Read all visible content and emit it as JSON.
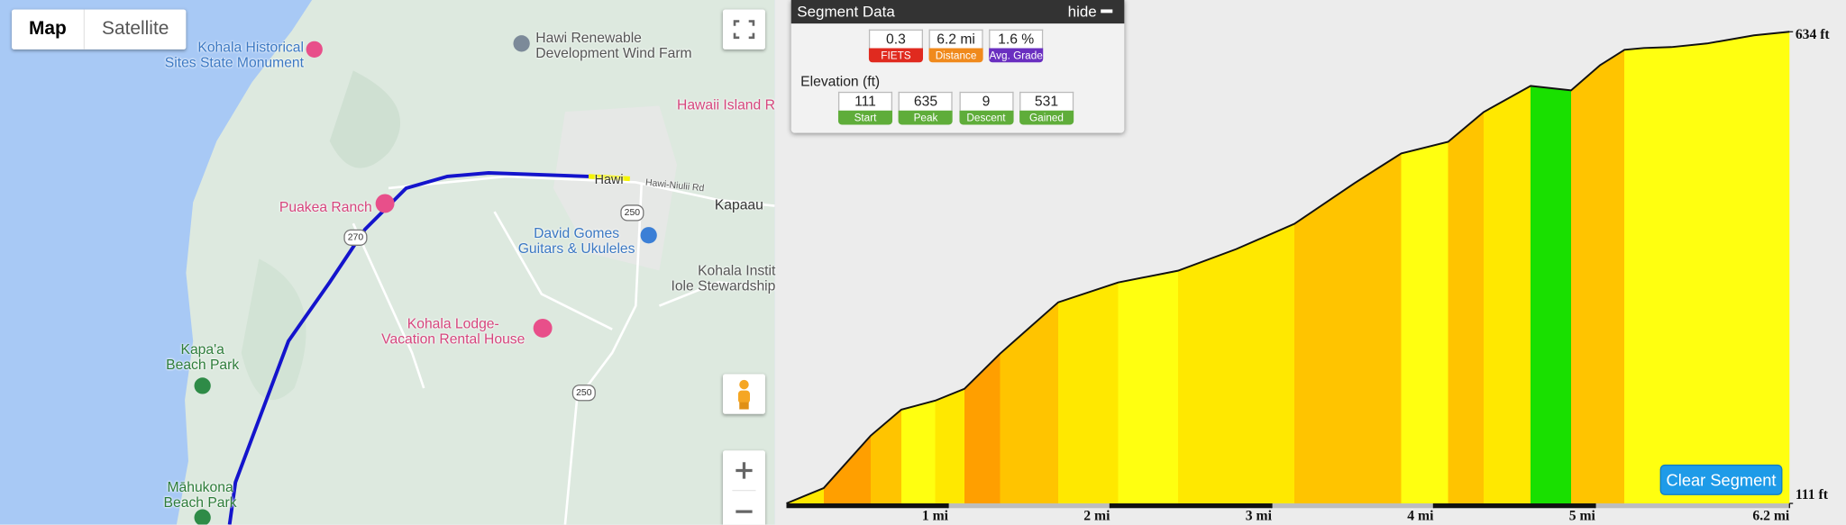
{
  "map": {
    "controls": {
      "map": "Map",
      "satellite": "Satellite"
    },
    "labels": [
      {
        "lines": [
          "Kohala Historical",
          "Sites State Monument"
        ]
      },
      {
        "lines": [
          "Hawi Renewable",
          "Development Wind Farm"
        ]
      },
      {
        "lines": [
          "Hawaii Island R"
        ]
      },
      {
        "lines": [
          "Puakea Ranch"
        ]
      },
      {
        "lines": [
          "Hawi"
        ]
      },
      {
        "lines": [
          "Hawi-Niulii Rd"
        ]
      },
      {
        "lines": [
          "Kapaau"
        ]
      },
      {
        "lines": [
          "David Gomes",
          "Guitars & Ukuleles"
        ]
      },
      {
        "lines": [
          "Kohala Instit",
          "Iole Stewardship"
        ]
      },
      {
        "lines": [
          "Kohala Lodge-",
          "Vacation Rental House"
        ]
      },
      {
        "lines": [
          "Kapa'a",
          "Beach Park"
        ]
      },
      {
        "lines": [
          "Māhukona",
          "Beach Park"
        ]
      }
    ],
    "shields": [
      "250",
      "270",
      "250"
    ]
  },
  "segment_panel": {
    "title": "Segment Data",
    "hide": "hide",
    "stats": [
      {
        "value": "0.3",
        "label": "FIETS"
      },
      {
        "value": "6.2 mi",
        "label": "Distance"
      },
      {
        "value": "1.6 %",
        "label": "Avg. Grade"
      }
    ],
    "elevation_title": "Elevation (ft)",
    "elevation_stats": [
      {
        "value": "111",
        "label": "Start"
      },
      {
        "value": "635",
        "label": "Peak"
      },
      {
        "value": "9",
        "label": "Descent"
      },
      {
        "value": "531",
        "label": "Gained"
      }
    ]
  },
  "clear_button": "Clear Segment",
  "chart_data": {
    "type": "area",
    "x": [
      0,
      0.23,
      0.52,
      0.71,
      0.92,
      1.1,
      1.32,
      1.68,
      2.05,
      2.42,
      2.78,
      3.14,
      3.51,
      3.8,
      4.09,
      4.31,
      4.6,
      4.85,
      5.03,
      5.18,
      5.3,
      5.47,
      5.69,
      5.98,
      6.2
    ],
    "values": [
      111,
      128,
      186,
      215,
      225,
      238,
      277,
      334,
      356,
      369,
      393,
      421,
      466,
      499,
      512,
      545,
      574,
      569,
      597,
      614,
      616,
      617,
      621,
      630,
      634
    ],
    "xlim": [
      0,
      6.2
    ],
    "ylim": [
      111,
      634
    ],
    "xticks": [
      {
        "value": 1,
        "label": "1 mi"
      },
      {
        "value": 2,
        "label": "2 mi"
      },
      {
        "value": 3,
        "label": "3 mi"
      },
      {
        "value": 4,
        "label": "4 mi"
      },
      {
        "value": 5,
        "label": "5 mi"
      },
      {
        "value": 6.2,
        "label": "6.2 mi"
      }
    ],
    "yticks": [
      {
        "value": 111,
        "label": "111 ft"
      },
      {
        "value": 634,
        "label": "634 ft"
      }
    ]
  }
}
